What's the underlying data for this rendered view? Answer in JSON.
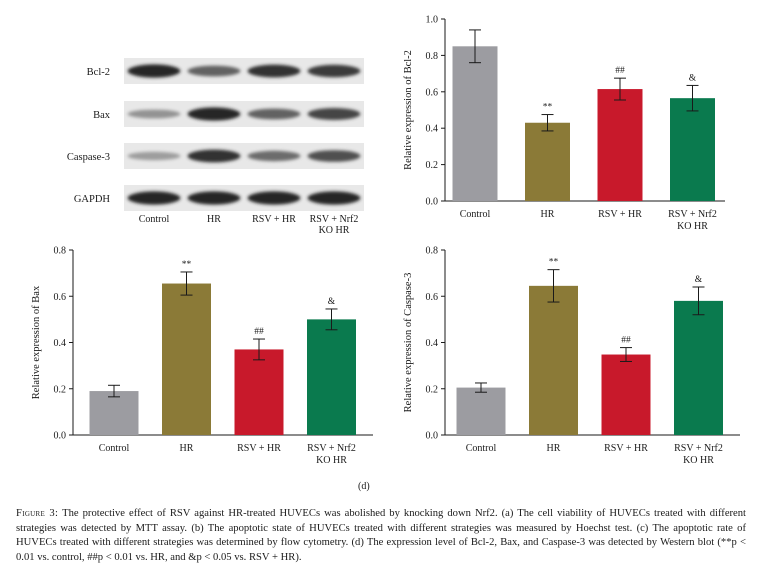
{
  "blot": {
    "proteins": [
      "Bcl-2",
      "Bax",
      "Caspase-3",
      "GAPDH"
    ],
    "lanes": [
      "Control",
      "HR",
      "RSV + HR",
      "RSV + Nrf2\nKO HR"
    ]
  },
  "chart_data": [
    {
      "panel": "bcl2",
      "type": "bar",
      "categories": [
        "Control",
        "HR",
        "RSV + HR",
        "RSV + Nrf2\nKO HR"
      ],
      "values": [
        0.85,
        0.43,
        0.615,
        0.565
      ],
      "errors": [
        0.09,
        0.045,
        0.06,
        0.07
      ],
      "annotations": [
        "",
        "**",
        "##",
        "&"
      ],
      "colors": [
        "#9c9ca1",
        "#8b7a37",
        "#c8192b",
        "#0a7a4e"
      ],
      "ylabel": "Relative expression of Bcl-2",
      "xlabel": "",
      "ylim": [
        0,
        1.0
      ],
      "yticks": [
        0.0,
        0.2,
        0.4,
        0.6,
        0.8,
        1.0
      ]
    },
    {
      "panel": "bax",
      "type": "bar",
      "categories": [
        "Control",
        "HR",
        "RSV + HR",
        "RSV + Nrf2\nKO HR"
      ],
      "values": [
        0.19,
        0.655,
        0.37,
        0.5
      ],
      "errors": [
        0.025,
        0.05,
        0.045,
        0.045
      ],
      "annotations": [
        "",
        "**",
        "##",
        "&"
      ],
      "colors": [
        "#9c9ca1",
        "#8b7a37",
        "#c8192b",
        "#0a7a4e"
      ],
      "ylabel": "Relative expression of Bax",
      "xlabel": "",
      "ylim": [
        0,
        0.8
      ],
      "yticks": [
        0.0,
        0.2,
        0.4,
        0.6,
        0.8
      ]
    },
    {
      "panel": "caspase3",
      "type": "bar",
      "categories": [
        "Control",
        "HR",
        "RSV + HR",
        "RSV + Nrf2\nKO HR"
      ],
      "values": [
        0.205,
        0.645,
        0.348,
        0.58
      ],
      "errors": [
        0.02,
        0.07,
        0.03,
        0.06
      ],
      "annotations": [
        "",
        "**",
        "##",
        "&"
      ],
      "colors": [
        "#9c9ca1",
        "#8b7a37",
        "#c8192b",
        "#0a7a4e"
      ],
      "ylabel": "Relative expression of Caspase-3",
      "xlabel": "",
      "ylim": [
        0,
        0.8
      ],
      "yticks": [
        0.0,
        0.2,
        0.4,
        0.6,
        0.8
      ]
    }
  ],
  "panel_label": "(d)",
  "caption": {
    "label": "Figure 3:",
    "text": "The protective effect of RSV against HR-treated HUVECs was abolished by knocking down Nrf2. (a) The cell viability of HUVECs treated with different strategies was detected by MTT assay. (b) The apoptotic state of HUVECs treated with different strategies was measured by Hoechst test. (c) The apoptotic rate of HUVECs treated with different strategies was determined by flow cytometry. (d) The expression level of Bcl-2, Bax, and Caspase-3 was detected by Western blot (**p < 0.01 vs. control, ##p < 0.01 vs. HR, and &p < 0.05 vs. RSV + HR)."
  }
}
